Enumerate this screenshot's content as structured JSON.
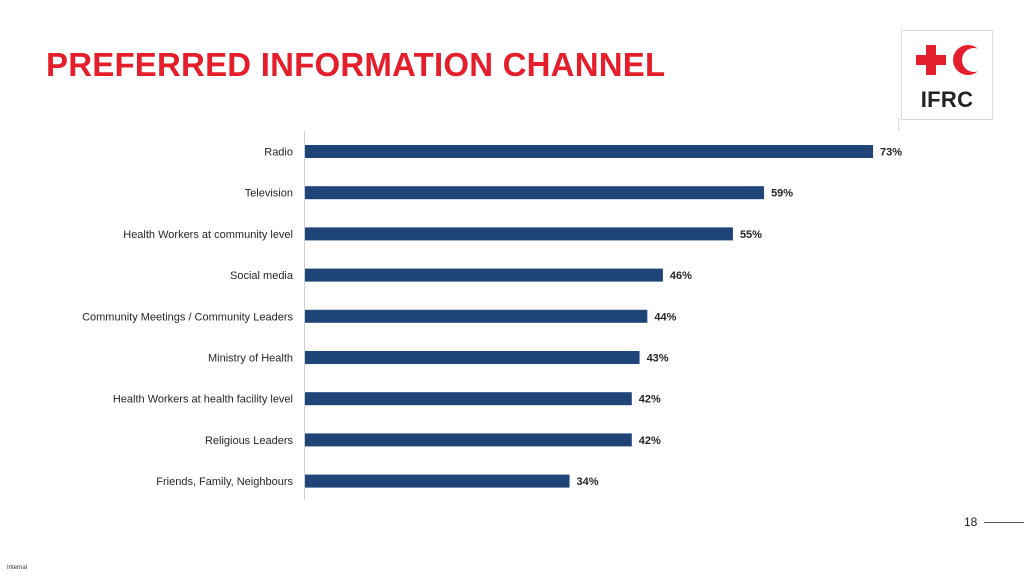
{
  "slide": {
    "title": "PREFERRED INFORMATION CHANNEL",
    "page_number": "18",
    "classification": "Internal",
    "logo_text": "IFRC",
    "logo_icons": [
      "red-cross-icon",
      "red-crescent-icon"
    ],
    "colors": {
      "title": "#e41e2a",
      "bar": "#1f4478",
      "logo_red": "#e41e2a"
    }
  },
  "chart_data": {
    "type": "bar",
    "orientation": "horizontal",
    "categories": [
      "Radio",
      "Television",
      "Health Workers at community level",
      "Social media",
      "Community Meetings / Community Leaders",
      "Ministry of Health",
      "Health Workers at health facility level",
      "Religious Leaders",
      "Friends, Family, Neighbours"
    ],
    "values": [
      73,
      59,
      55,
      46,
      44,
      43,
      42,
      42,
      34
    ],
    "value_labels": [
      "73%",
      "59%",
      "55%",
      "46%",
      "44%",
      "43%",
      "42%",
      "42%",
      "34%"
    ],
    "xlim": [
      0,
      100
    ],
    "grid": false,
    "legend": "none"
  }
}
